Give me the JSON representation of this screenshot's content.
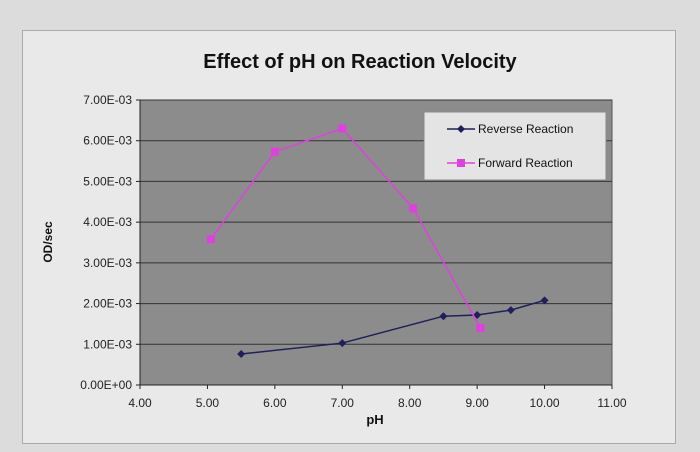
{
  "chart_data": {
    "type": "line",
    "title": "Effect of pH on Reaction Velocity",
    "xlabel": "pH",
    "ylabel": "OD/sec",
    "xlim": [
      4,
      11
    ],
    "ylim": [
      0,
      0.007
    ],
    "x_ticks": [
      "4.00",
      "5.00",
      "6.00",
      "7.00",
      "8.00",
      "9.00",
      "10.00",
      "11.00"
    ],
    "y_ticks": [
      "0.00E+00",
      "1.00E-03",
      "2.00E-03",
      "3.00E-03",
      "4.00E-03",
      "5.00E-03",
      "6.00E-03",
      "7.00E-03"
    ],
    "grid": "horizontal",
    "legend_position": "top-right",
    "plot_background": "#8c8c8c",
    "series": [
      {
        "name": "Reverse Reaction",
        "color": "#1f1f5c",
        "marker": "diamond",
        "x": [
          5.5,
          7.0,
          8.5,
          9.0,
          9.5,
          10.0
        ],
        "y": [
          0.00076,
          0.00103,
          0.00169,
          0.00172,
          0.00184,
          0.00208
        ]
      },
      {
        "name": "Forward Reaction",
        "color": "#e040e0",
        "marker": "square",
        "x": [
          5.05,
          6.0,
          7.0,
          8.05,
          9.05
        ],
        "y": [
          0.00358,
          0.00573,
          0.0063,
          0.00434,
          0.0014
        ]
      }
    ]
  }
}
